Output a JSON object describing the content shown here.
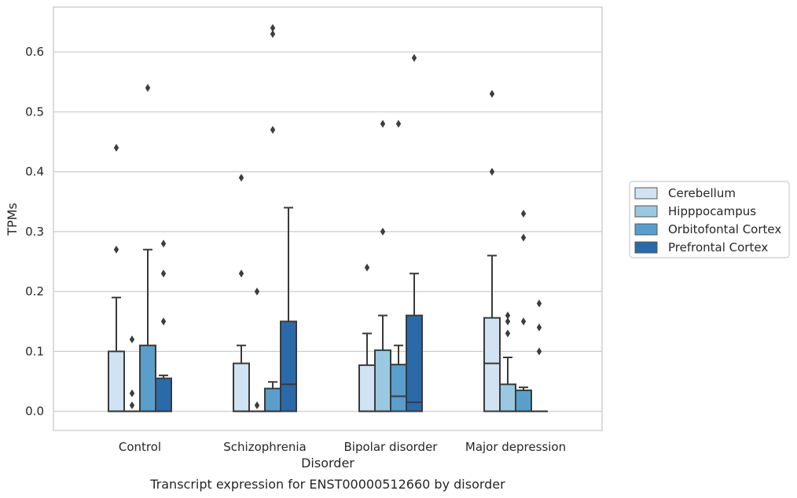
{
  "chart_data": {
    "type": "boxplot",
    "title": "Transcript expression for ENST00000512660 by disorder",
    "xlabel": "Disorder",
    "ylabel": "TPMs",
    "ylim": [
      -0.032,
      0.675
    ],
    "yticks": [
      0.0,
      0.1,
      0.2,
      0.3,
      0.4,
      0.5,
      0.6
    ],
    "ytick_labels": [
      "0.0",
      "0.1",
      "0.2",
      "0.3",
      "0.4",
      "0.5",
      "0.6"
    ],
    "grid": true,
    "legend_position": "right",
    "categories": [
      "Control",
      "Schizophrenia",
      "Bipolar disorder",
      "Major depression"
    ],
    "series": [
      {
        "name": "Cerebellum",
        "color": "#d1e2f2",
        "boxes": [
          {
            "q1": 0.0,
            "median": 0.0,
            "q3": 0.1,
            "whisker_low": 0.0,
            "whisker_high": 0.19,
            "outliers": [
              0.27,
              0.44
            ]
          },
          {
            "q1": 0.0,
            "median": 0.0,
            "q3": 0.08,
            "whisker_low": 0.0,
            "whisker_high": 0.11,
            "outliers": [
              0.23,
              0.39
            ]
          },
          {
            "q1": 0.0,
            "median": 0.0,
            "q3": 0.077,
            "whisker_low": 0.0,
            "whisker_high": 0.13,
            "outliers": [
              0.24
            ]
          },
          {
            "q1": 0.0,
            "median": 0.08,
            "q3": 0.156,
            "whisker_low": 0.0,
            "whisker_high": 0.26,
            "outliers": [
              0.4,
              0.53
            ]
          }
        ]
      },
      {
        "name": "Hipppocampus",
        "color": "#9ac8e0",
        "boxes": [
          {
            "q1": 0.0,
            "median": 0.0,
            "q3": 0.0,
            "whisker_low": 0.0,
            "whisker_high": 0.0,
            "outliers": [
              0.01,
              0.03,
              0.12
            ]
          },
          {
            "q1": 0.0,
            "median": 0.0,
            "q3": 0.0,
            "whisker_low": 0.0,
            "whisker_high": 0.0,
            "outliers": [
              0.01,
              0.2
            ]
          },
          {
            "q1": 0.0,
            "median": 0.0,
            "q3": 0.102,
            "whisker_low": 0.0,
            "whisker_high": 0.16,
            "outliers": [
              0.3,
              0.48
            ]
          },
          {
            "q1": 0.0,
            "median": 0.0,
            "q3": 0.045,
            "whisker_low": 0.0,
            "whisker_high": 0.09,
            "outliers": [
              0.13,
              0.15,
              0.16
            ]
          }
        ]
      },
      {
        "name": "Orbitofontal Cortex",
        "color": "#5a9ecc",
        "boxes": [
          {
            "q1": 0.0,
            "median": 0.0,
            "q3": 0.11,
            "whisker_low": 0.0,
            "whisker_high": 0.27,
            "outliers": [
              0.54
            ]
          },
          {
            "q1": 0.0,
            "median": 0.0,
            "q3": 0.038,
            "whisker_low": 0.0,
            "whisker_high": 0.049,
            "outliers": [
              0.47,
              0.63,
              0.64
            ]
          },
          {
            "q1": 0.0,
            "median": 0.025,
            "q3": 0.078,
            "whisker_low": 0.0,
            "whisker_high": 0.11,
            "outliers": [
              0.48
            ]
          },
          {
            "q1": 0.0,
            "median": 0.0,
            "q3": 0.035,
            "whisker_low": 0.0,
            "whisker_high": 0.04,
            "outliers": [
              0.15,
              0.29,
              0.33
            ]
          }
        ]
      },
      {
        "name": "Prefrontal Cortex",
        "color": "#2b6aa8",
        "boxes": [
          {
            "q1": 0.0,
            "median": 0.0,
            "q3": 0.055,
            "whisker_low": 0.0,
            "whisker_high": 0.06,
            "outliers": [
              0.15,
              0.23,
              0.28
            ]
          },
          {
            "q1": 0.0,
            "median": 0.045,
            "q3": 0.15,
            "whisker_low": 0.0,
            "whisker_high": 0.34,
            "outliers": []
          },
          {
            "q1": 0.0,
            "median": 0.015,
            "q3": 0.16,
            "whisker_low": 0.0,
            "whisker_high": 0.23,
            "outliers": [
              0.59
            ]
          },
          {
            "q1": 0.0,
            "median": 0.0,
            "q3": 0.0,
            "whisker_low": 0.0,
            "whisker_high": 0.0,
            "outliers": [
              0.1,
              0.14,
              0.18
            ]
          }
        ]
      }
    ]
  }
}
